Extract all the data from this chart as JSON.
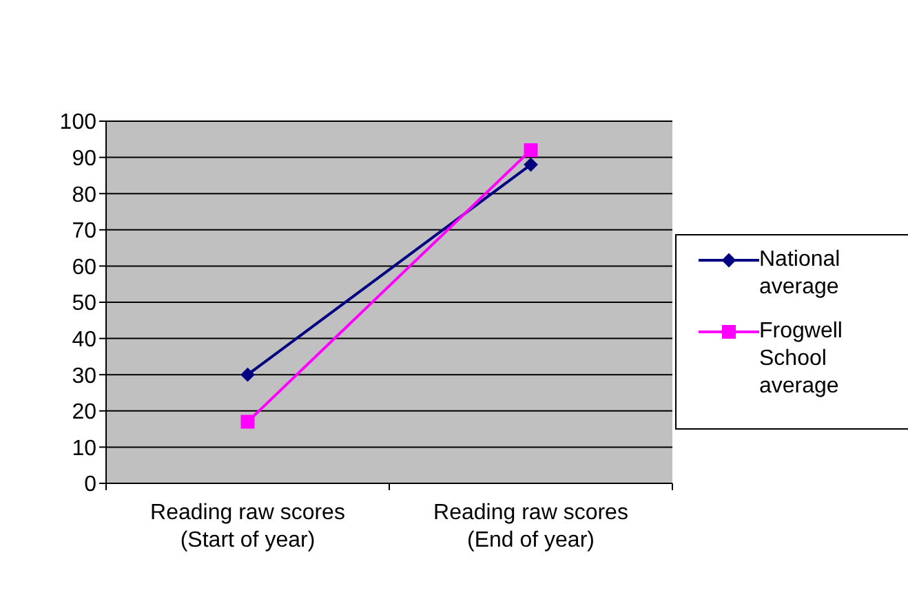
{
  "chart_data": {
    "type": "line",
    "categories": [
      "Reading raw scores (Start of year)",
      "Reading raw scores (End of year)"
    ],
    "series": [
      {
        "name": "National average",
        "color": "#000080",
        "values": [
          30,
          88
        ],
        "marker": "diamond"
      },
      {
        "name": "Frogwell School average",
        "color": "#ff00ff",
        "values": [
          17,
          92
        ],
        "marker": "square"
      }
    ],
    "ylim": [
      0,
      100
    ],
    "yticks": [
      0,
      10,
      20,
      30,
      40,
      50,
      60,
      70,
      80,
      90,
      100
    ],
    "grid": "y",
    "legend": "right",
    "line_style": "solid"
  }
}
